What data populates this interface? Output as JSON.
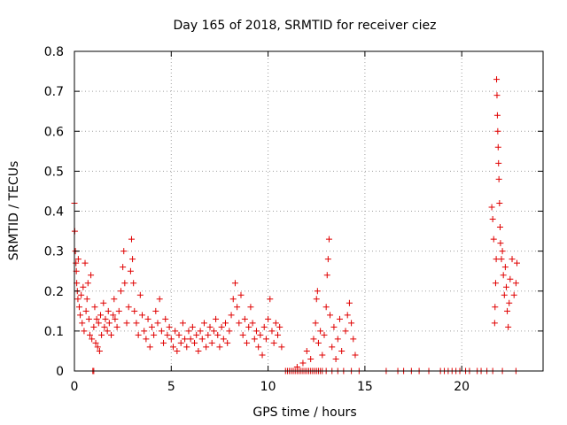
{
  "chart_data": {
    "type": "scatter",
    "title": "Day 165 of 2018, SRMTID for receiver ciez",
    "xlabel": "GPS time / hours",
    "ylabel": "SRMTID / TECUs",
    "xlim": [
      0,
      24.2
    ],
    "ylim": [
      0,
      0.8
    ],
    "grid": true,
    "x_ticks": [
      0,
      5,
      10,
      15,
      20
    ],
    "x_tick_labels": [
      "0",
      "5",
      "10",
      "15",
      "20"
    ],
    "y_ticks": [
      0,
      0.1,
      0.2,
      0.3,
      0.4,
      0.5,
      0.6,
      0.7,
      0.8
    ],
    "y_tick_labels": [
      "0",
      "0.1",
      "0.2",
      "0.3",
      "0.4",
      "0.5",
      "0.6",
      "0.7",
      "0.8"
    ],
    "marker": "plus",
    "color": "#e00000",
    "series": [
      {
        "name": "SRMTID",
        "points": [
          [
            0.0,
            0.42
          ],
          [
            0.02,
            0.35
          ],
          [
            0.05,
            0.3
          ],
          [
            0.08,
            0.27
          ],
          [
            0.1,
            0.25
          ],
          [
            0.12,
            0.22
          ],
          [
            0.15,
            0.2
          ],
          [
            0.18,
            0.18
          ],
          [
            0.2,
            0.28
          ],
          [
            0.25,
            0.16
          ],
          [
            0.3,
            0.14
          ],
          [
            0.35,
            0.19
          ],
          [
            0.4,
            0.12
          ],
          [
            0.45,
            0.21
          ],
          [
            0.5,
            0.1
          ],
          [
            0.55,
            0.27
          ],
          [
            0.6,
            0.15
          ],
          [
            0.65,
            0.18
          ],
          [
            0.7,
            0.22
          ],
          [
            0.75,
            0.13
          ],
          [
            0.8,
            0.09
          ],
          [
            0.85,
            0.24
          ],
          [
            0.9,
            0.08
          ],
          [
            1.0,
            0.11
          ],
          [
            1.05,
            0.16
          ],
          [
            1.1,
            0.07
          ],
          [
            1.15,
            0.13
          ],
          [
            1.2,
            0.06
          ],
          [
            1.25,
            0.12
          ],
          [
            1.3,
            0.05
          ],
          [
            1.35,
            0.14
          ],
          [
            1.4,
            0.09
          ],
          [
            1.5,
            0.17
          ],
          [
            1.55,
            0.11
          ],
          [
            1.6,
            0.13
          ],
          [
            1.7,
            0.1
          ],
          [
            1.75,
            0.15
          ],
          [
            1.8,
            0.12
          ],
          [
            1.9,
            0.09
          ],
          [
            2.0,
            0.14
          ],
          [
            2.05,
            0.18
          ],
          [
            2.1,
            0.13
          ],
          [
            2.2,
            0.11
          ],
          [
            2.3,
            0.15
          ],
          [
            2.4,
            0.2
          ],
          [
            2.5,
            0.26
          ],
          [
            2.55,
            0.3
          ],
          [
            2.6,
            0.22
          ],
          [
            2.7,
            0.12
          ],
          [
            2.8,
            0.16
          ],
          [
            2.9,
            0.25
          ],
          [
            2.95,
            0.33
          ],
          [
            3.0,
            0.28
          ],
          [
            3.05,
            0.22
          ],
          [
            3.1,
            0.15
          ],
          [
            3.2,
            0.12
          ],
          [
            3.3,
            0.09
          ],
          [
            3.4,
            0.19
          ],
          [
            3.5,
            0.14
          ],
          [
            3.6,
            0.1
          ],
          [
            3.7,
            0.08
          ],
          [
            3.8,
            0.13
          ],
          [
            3.9,
            0.06
          ],
          [
            4.0,
            0.11
          ],
          [
            4.1,
            0.09
          ],
          [
            4.2,
            0.15
          ],
          [
            4.3,
            0.12
          ],
          [
            4.4,
            0.18
          ],
          [
            4.5,
            0.1
          ],
          [
            4.6,
            0.07
          ],
          [
            4.7,
            0.13
          ],
          [
            4.8,
            0.09
          ],
          [
            4.9,
            0.11
          ],
          [
            5.0,
            0.08
          ],
          [
            5.1,
            0.06
          ],
          [
            5.2,
            0.1
          ],
          [
            5.3,
            0.05
          ],
          [
            5.4,
            0.09
          ],
          [
            5.5,
            0.07
          ],
          [
            5.6,
            0.12
          ],
          [
            5.7,
            0.08
          ],
          [
            5.8,
            0.06
          ],
          [
            5.9,
            0.1
          ],
          [
            6.0,
            0.08
          ],
          [
            6.1,
            0.11
          ],
          [
            6.2,
            0.07
          ],
          [
            6.3,
            0.09
          ],
          [
            6.4,
            0.05
          ],
          [
            6.5,
            0.1
          ],
          [
            6.6,
            0.08
          ],
          [
            6.7,
            0.12
          ],
          [
            6.8,
            0.06
          ],
          [
            6.9,
            0.09
          ],
          [
            7.0,
            0.11
          ],
          [
            7.1,
            0.07
          ],
          [
            7.2,
            0.1
          ],
          [
            7.3,
            0.13
          ],
          [
            7.4,
            0.09
          ],
          [
            7.5,
            0.06
          ],
          [
            7.6,
            0.11
          ],
          [
            7.7,
            0.08
          ],
          [
            7.8,
            0.12
          ],
          [
            7.9,
            0.07
          ],
          [
            8.0,
            0.1
          ],
          [
            8.1,
            0.14
          ],
          [
            8.2,
            0.18
          ],
          [
            8.3,
            0.22
          ],
          [
            8.4,
            0.16
          ],
          [
            8.5,
            0.12
          ],
          [
            8.6,
            0.19
          ],
          [
            8.7,
            0.09
          ],
          [
            8.8,
            0.13
          ],
          [
            8.9,
            0.07
          ],
          [
            9.0,
            0.11
          ],
          [
            9.1,
            0.16
          ],
          [
            9.2,
            0.12
          ],
          [
            9.3,
            0.08
          ],
          [
            9.4,
            0.1
          ],
          [
            9.5,
            0.06
          ],
          [
            9.6,
            0.09
          ],
          [
            9.7,
            0.04
          ],
          [
            9.8,
            0.11
          ],
          [
            9.9,
            0.08
          ],
          [
            10.0,
            0.13
          ],
          [
            10.1,
            0.18
          ],
          [
            10.2,
            0.1
          ],
          [
            10.3,
            0.07
          ],
          [
            10.4,
            0.12
          ],
          [
            10.5,
            0.09
          ],
          [
            10.6,
            0.11
          ],
          [
            10.7,
            0.06
          ],
          [
            11.5,
            0.01
          ],
          [
            11.8,
            0.02
          ],
          [
            12.0,
            0.05
          ],
          [
            12.2,
            0.03
          ],
          [
            12.35,
            0.08
          ],
          [
            12.45,
            0.12
          ],
          [
            12.5,
            0.18
          ],
          [
            12.55,
            0.2
          ],
          [
            12.6,
            0.07
          ],
          [
            12.7,
            0.1
          ],
          [
            12.8,
            0.04
          ],
          [
            12.9,
            0.09
          ],
          [
            13.0,
            0.16
          ],
          [
            13.05,
            0.24
          ],
          [
            13.1,
            0.28
          ],
          [
            13.15,
            0.33
          ],
          [
            13.2,
            0.14
          ],
          [
            13.3,
            0.06
          ],
          [
            13.4,
            0.11
          ],
          [
            13.5,
            0.03
          ],
          [
            13.6,
            0.08
          ],
          [
            13.7,
            0.13
          ],
          [
            13.8,
            0.05
          ],
          [
            14.0,
            0.1
          ],
          [
            14.1,
            0.14
          ],
          [
            14.2,
            0.17
          ],
          [
            14.3,
            0.12
          ],
          [
            14.4,
            0.08
          ],
          [
            14.5,
            0.04
          ],
          [
            21.55,
            0.41
          ],
          [
            21.6,
            0.38
          ],
          [
            21.65,
            0.33
          ],
          [
            21.7,
            0.12
          ],
          [
            21.72,
            0.16
          ],
          [
            21.75,
            0.22
          ],
          [
            21.78,
            0.28
          ],
          [
            21.8,
            0.73
          ],
          [
            21.82,
            0.69
          ],
          [
            21.84,
            0.64
          ],
          [
            21.86,
            0.6
          ],
          [
            21.88,
            0.56
          ],
          [
            21.9,
            0.52
          ],
          [
            21.92,
            0.48
          ],
          [
            21.95,
            0.42
          ],
          [
            21.98,
            0.36
          ],
          [
            22.0,
            0.32
          ],
          [
            22.05,
            0.28
          ],
          [
            22.1,
            0.3
          ],
          [
            22.15,
            0.24
          ],
          [
            22.2,
            0.19
          ],
          [
            22.25,
            0.26
          ],
          [
            22.3,
            0.21
          ],
          [
            22.35,
            0.15
          ],
          [
            22.4,
            0.11
          ],
          [
            22.45,
            0.17
          ],
          [
            22.5,
            0.23
          ],
          [
            22.6,
            0.28
          ],
          [
            22.7,
            0.19
          ],
          [
            22.8,
            0.22
          ],
          [
            22.85,
            0.27
          ]
        ],
        "zero_points": [
          0.95,
          1.0,
          10.9,
          11.0,
          11.1,
          11.2,
          11.3,
          11.4,
          11.5,
          11.6,
          11.7,
          11.8,
          11.9,
          12.0,
          12.1,
          12.2,
          12.3,
          12.4,
          12.5,
          12.6,
          12.7,
          12.8,
          13.0,
          13.3,
          13.6,
          13.9,
          14.3,
          14.7,
          16.1,
          16.7,
          17.0,
          17.4,
          17.8,
          18.3,
          18.9,
          19.1,
          19.3,
          19.5,
          19.7,
          19.9,
          20.2,
          20.4,
          20.8,
          21.0,
          21.3,
          21.6,
          22.1,
          22.8
        ]
      }
    ]
  }
}
